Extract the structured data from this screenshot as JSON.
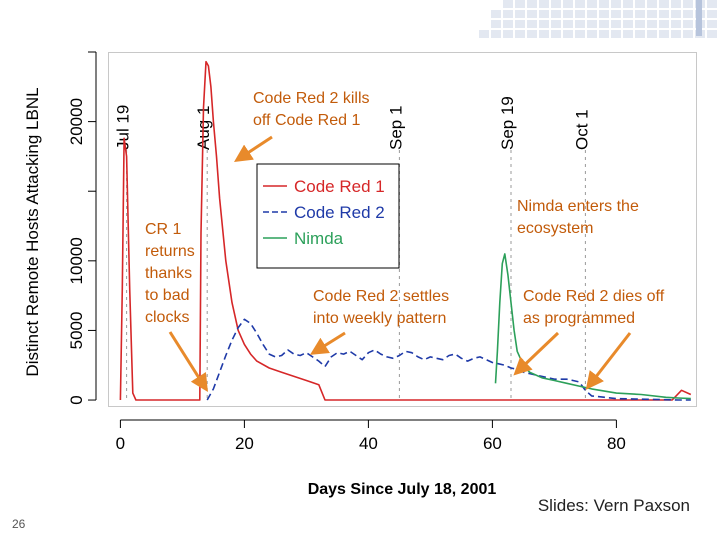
{
  "slide": {
    "number": "26",
    "credit": "Slides: Vern Paxson"
  },
  "annotations": {
    "cr2_kills_cr1": "Code Red 2 kills\noff Code Red 1",
    "cr1_returns": "CR 1\nreturns\nthanks\nto bad\nclocks",
    "cr2_weekly": "Code Red 2 settles\ninto weekly pattern",
    "nimda_enters": "Nimda enters the\necosystem",
    "cr2_dies": "Code Red 2 dies off\nas programmed"
  },
  "colors": {
    "code_red_1": "#d62728",
    "code_red_2": "#1f3aa8",
    "nimda": "#2ca05a",
    "annotation": "#c25b0a",
    "arrow": "#e88a2b"
  },
  "chart_data": {
    "type": "line",
    "title": "",
    "xlabel": "Days Since July 18, 2001",
    "ylabel": "Distinct Remote Hosts Attacking LBNL",
    "xlim": [
      -2,
      93
    ],
    "ylim": [
      -500,
      25000
    ],
    "x_ticks": [
      0,
      20,
      40,
      60,
      80
    ],
    "y_ticks": [
      0,
      5000,
      10000,
      15000,
      20000,
      25000
    ],
    "y_tick_labels": [
      "0",
      "5000",
      "10000",
      "",
      "20000",
      ""
    ],
    "month_markers": [
      {
        "label": "Jul 19",
        "day": 1
      },
      {
        "label": "Aug 1",
        "day": 14
      },
      {
        "label": "Sep 1",
        "day": 45
      },
      {
        "label": "Sep 19",
        "day": 63
      },
      {
        "label": "Oct 1",
        "day": 75
      }
    ],
    "legend": {
      "position": "top-center",
      "entries": [
        "Code Red 1",
        "Code Red 2",
        "Nimda"
      ]
    },
    "series": [
      {
        "name": "Code Red 1",
        "color": "#d62728",
        "dash": "solid",
        "x": [
          0,
          0.3,
          0.6,
          1.0,
          1.5,
          2.0,
          2.5,
          3.0,
          10,
          12.8,
          13.0,
          13.4,
          13.8,
          14.2,
          14.6,
          15.0,
          15.5,
          16.0,
          17.0,
          18.0,
          19.0,
          20.0,
          21.0,
          22.0,
          24.0,
          26.0,
          28.0,
          30.0,
          32.0,
          33.0,
          40,
          50,
          60,
          70,
          80,
          89,
          90.5,
          92
        ],
        "y": [
          0,
          8000,
          18800,
          17500,
          8000,
          500,
          0,
          0,
          0,
          0,
          12000,
          21000,
          24300,
          24000,
          22500,
          20000,
          17500,
          14500,
          10000,
          7000,
          5000,
          4000,
          3300,
          2800,
          2300,
          2000,
          1700,
          1400,
          1100,
          0,
          0,
          0,
          0,
          0,
          0,
          0,
          700,
          400
        ]
      },
      {
        "name": "Code Red 2",
        "color": "#1f3aa8",
        "dash": "dashed",
        "x": [
          14,
          15,
          16,
          17,
          18,
          19,
          20,
          21,
          22,
          23,
          24,
          25,
          26,
          27,
          28,
          29,
          30,
          31,
          32,
          33,
          34,
          35,
          36,
          37,
          38,
          39,
          40,
          41,
          42,
          43,
          44,
          45,
          46,
          47,
          48,
          49,
          50,
          51,
          52,
          53,
          54,
          55,
          56,
          57,
          58,
          59,
          60,
          61,
          62,
          63,
          64,
          65,
          66,
          67,
          68,
          69,
          70,
          71,
          72,
          73,
          74,
          75,
          76,
          80,
          85,
          90,
          92
        ],
        "y": [
          0,
          800,
          2000,
          3200,
          4300,
          5200,
          5800,
          5500,
          4800,
          4000,
          3300,
          3100,
          3200,
          3600,
          3300,
          3200,
          3400,
          3100,
          2800,
          2400,
          3100,
          3400,
          3300,
          3500,
          3200,
          2900,
          3400,
          3600,
          3300,
          3100,
          3000,
          3200,
          3500,
          3400,
          3100,
          2900,
          3100,
          3000,
          2900,
          3200,
          3300,
          3000,
          2800,
          3000,
          3100,
          2900,
          2700,
          2600,
          2500,
          2300,
          2200,
          2000,
          1900,
          1800,
          1700,
          1600,
          1500,
          1500,
          1500,
          1400,
          1300,
          700,
          300,
          100,
          50,
          0,
          0
        ]
      },
      {
        "name": "Nimda",
        "color": "#2ca05a",
        "dash": "solid",
        "x": [
          60.5,
          60.8,
          61.2,
          61.6,
          62.0,
          62.5,
          63.0,
          63.5,
          64.0,
          65.0,
          66.0,
          67.0,
          68.0,
          70.0,
          72.0,
          74.0,
          76.0,
          80.0,
          84.0,
          88.0,
          90.0,
          92.0
        ],
        "y": [
          1200,
          3500,
          7000,
          9800,
          10500,
          9000,
          7000,
          5000,
          3500,
          2500,
          2000,
          1800,
          1600,
          1400,
          1200,
          1000,
          800,
          500,
          400,
          200,
          150,
          100
        ]
      }
    ]
  }
}
